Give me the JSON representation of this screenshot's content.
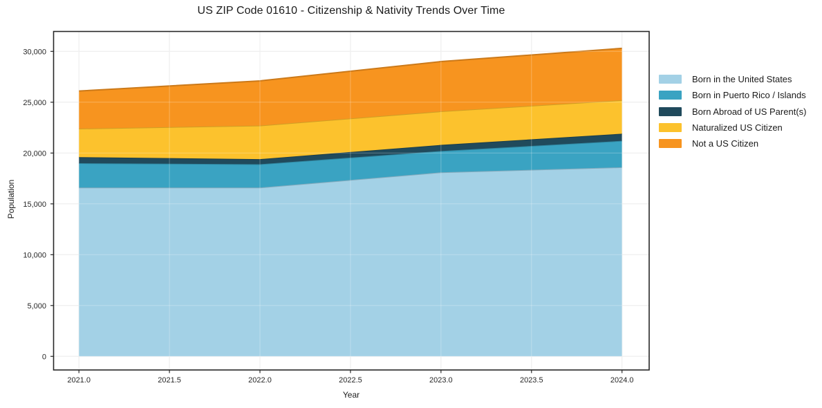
{
  "page": {
    "background": "#ffffff"
  },
  "chart_data": {
    "type": "area",
    "stacked": true,
    "title": "US ZIP Code 01610 - Citizenship & Nativity Trends Over Time",
    "xlabel": "Year",
    "ylabel": "Population",
    "x": [
      2021,
      2022,
      2023,
      2024
    ],
    "series": [
      {
        "name": "Born in the United States",
        "color": "#a3d1e6",
        "values": [
          16600,
          16600,
          18100,
          18600
        ]
      },
      {
        "name": "Born in Puerto Rico / Islands",
        "color": "#3aa3c2",
        "values": [
          2400,
          2300,
          2100,
          2600
        ]
      },
      {
        "name": "Born Abroad of US Parent(s)",
        "color": "#204a5c",
        "values": [
          600,
          500,
          600,
          700
        ]
      },
      {
        "name": "Naturalized US Citizen",
        "color": "#fcc22d",
        "values": [
          2800,
          3300,
          3300,
          3300
        ]
      },
      {
        "name": "Not a US Citizen",
        "color": "#f7941f",
        "values": [
          3700,
          4400,
          4900,
          5100
        ]
      }
    ],
    "stack_totals": [
      26100,
      27100,
      29000,
      30300
    ],
    "x_ticks": [
      2021.0,
      2021.5,
      2022.0,
      2022.5,
      2023.0,
      2023.5,
      2024.0
    ],
    "x_tick_labels": [
      "2021.0",
      "2021.5",
      "2022.0",
      "2022.5",
      "2023.0",
      "2023.5",
      "2024.0"
    ],
    "y_ticks": [
      0,
      5000,
      10000,
      15000,
      20000,
      25000,
      30000
    ],
    "y_tick_labels": [
      "0",
      "5,000",
      "10,000",
      "15,000",
      "20,000",
      "25,000",
      "30,000"
    ],
    "xlim": [
      2020.86,
      2024.15
    ],
    "ylim": [
      -1340,
      31960
    ],
    "grid": true,
    "grid_color": "#e6e6e6",
    "spine_color": "#262626",
    "tick_label_color": "#262626",
    "legend_position": "right-outside"
  }
}
